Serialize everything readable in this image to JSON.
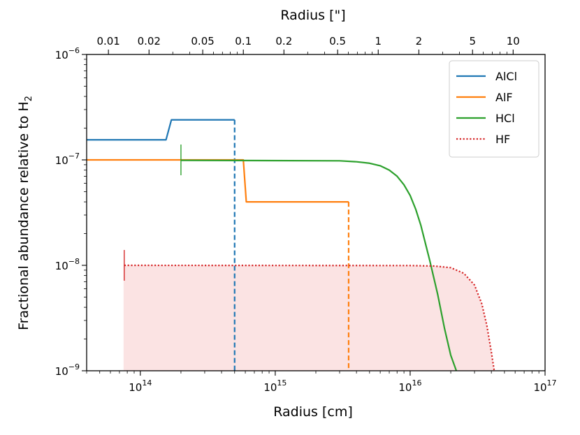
{
  "chart_data": {
    "type": "line",
    "title": "",
    "xlabel": "Radius [cm]",
    "x2label": "Radius [\"]",
    "ylabel": "Fractional abundance relative to H",
    "ylabel_sub": "2",
    "xscale": "log",
    "yscale": "log",
    "xlim": [
      40000000000000.0,
      1e+17
    ],
    "ylim": [
      1e-09,
      1e-06
    ],
    "x_major_ticks": [
      {
        "mant": "10",
        "exp": "14",
        "v": 100000000000000.0
      },
      {
        "mant": "10",
        "exp": "15",
        "v": 1000000000000000.0
      },
      {
        "mant": "10",
        "exp": "16",
        "v": 1e+16
      },
      {
        "mant": "10",
        "exp": "17",
        "v": 1e+17
      }
    ],
    "y_major_ticks": [
      {
        "mant": "10",
        "exp": "−9",
        "v": 1e-09
      },
      {
        "mant": "10",
        "exp": "−8",
        "v": 1e-08
      },
      {
        "mant": "10",
        "exp": "−7",
        "v": 1e-07
      },
      {
        "mant": "10",
        "exp": "−6",
        "v": 1e-06
      }
    ],
    "top_axis": {
      "cm_per_arcsec": 5800000000000000.0,
      "ticks": [
        {
          "label": "0.01",
          "v": 0.01
        },
        {
          "label": "0.02",
          "v": 0.02
        },
        {
          "label": "0.05",
          "v": 0.05
        },
        {
          "label": "0.1",
          "v": 0.1
        },
        {
          "label": "0.2",
          "v": 0.2
        },
        {
          "label": "0.5",
          "v": 0.5
        },
        {
          "label": "1",
          "v": 1
        },
        {
          "label": "2",
          "v": 2
        },
        {
          "label": "5",
          "v": 5
        },
        {
          "label": "10",
          "v": 10
        }
      ]
    },
    "legend_position": "upper right",
    "series": [
      {
        "name": "AlCl",
        "color": "#1f77b4",
        "style": "solid",
        "points": [
          [
            40000000000000.0,
            1.55e-07
          ],
          [
            155000000000000.0,
            1.55e-07
          ],
          [
            170000000000000.0,
            2.4e-07
          ],
          [
            500000000000000.0,
            2.4e-07
          ]
        ],
        "cutoff": {
          "x": 500000000000000.0,
          "y_top": 2.4e-07,
          "y_bottom": 1e-09,
          "style": "dashed"
        }
      },
      {
        "name": "AlF",
        "color": "#ff7f0e",
        "style": "solid",
        "points": [
          [
            40000000000000.0,
            1e-07
          ],
          [
            580000000000000.0,
            1e-07
          ],
          [
            610000000000000.0,
            4e-08
          ],
          [
            3500000000000000.0,
            4e-08
          ]
        ],
        "cutoff": {
          "x": 3500000000000000.0,
          "y_top": 4e-08,
          "y_bottom": 1e-09,
          "style": "dashed"
        }
      },
      {
        "name": "HCl",
        "color": "#2ca02c",
        "style": "solid",
        "inner_marker": {
          "x": 200000000000000.0,
          "y": 1e-07
        },
        "points": [
          [
            200000000000000.0,
            9.9e-08
          ],
          [
            3000000000000000.0,
            9.8e-08
          ],
          [
            4000000000000000.0,
            9.6e-08
          ],
          [
            5000000000000000.0,
            9.3e-08
          ],
          [
            6000000000000000.0,
            8.8e-08
          ],
          [
            7000000000000000.0,
            8e-08
          ],
          [
            8000000000000000.0,
            7e-08
          ],
          [
            9000000000000000.0,
            5.8e-08
          ],
          [
            1e+16,
            4.6e-08
          ],
          [
            1.1e+16,
            3.4e-08
          ],
          [
            1.2e+16,
            2.4e-08
          ],
          [
            1.3e+16,
            1.6e-08
          ],
          [
            1.4e+16,
            1.1e-08
          ],
          [
            1.6e+16,
            5.3e-09
          ],
          [
            1.8e+16,
            2.5e-09
          ],
          [
            2e+16,
            1.4e-09
          ],
          [
            2.2e+16,
            1e-09
          ]
        ]
      },
      {
        "name": "HF",
        "color": "#d62728",
        "style": "dotted",
        "fill": "#fbe3e3",
        "inner_marker": {
          "x": 76000000000000.0,
          "y": 1e-08
        },
        "points": [
          [
            76000000000000.0,
            1e-08
          ],
          [
            1e+16,
            9.95e-09
          ],
          [
            1.5e+16,
            9.85e-09
          ],
          [
            2e+16,
            9.5e-09
          ],
          [
            2.5e+16,
            8.4e-09
          ],
          [
            3e+16,
            6.5e-09
          ],
          [
            3.4e+16,
            4.3e-09
          ],
          [
            3.7e+16,
            2.7e-09
          ],
          [
            4e+16,
            1.5e-09
          ],
          [
            4.2e+16,
            1e-09
          ]
        ]
      }
    ]
  }
}
